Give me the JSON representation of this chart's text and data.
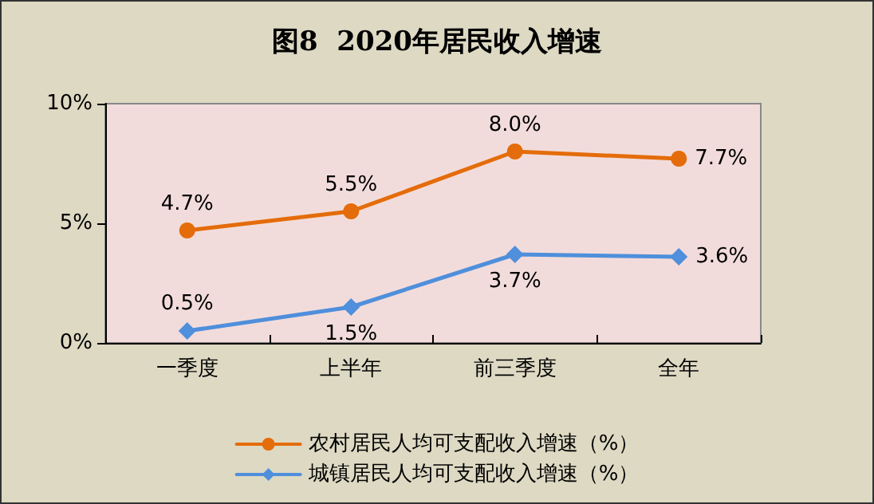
{
  "chart_data": {
    "type": "line",
    "title": "图8  2020年居民收入增速",
    "categories": [
      "一季度",
      "上半年",
      "前三季度",
      "全年"
    ],
    "series": [
      {
        "name": "农村居民人均可支配收入增速（%）",
        "color": "#e46c0a",
        "marker": "circle",
        "values": [
          4.7,
          5.5,
          8.0,
          7.7
        ],
        "value_labels": [
          "4.7%",
          "5.5%",
          "8.0%",
          "7.7%"
        ]
      },
      {
        "name": "城镇居民人均可支配收入增速（%）",
        "color": "#4f8fdc",
        "marker": "diamond",
        "values": [
          0.5,
          1.5,
          3.7,
          3.6
        ],
        "value_labels": [
          "0.5%",
          "1.5%",
          "3.7%",
          "3.6%"
        ]
      }
    ],
    "ylim": [
      0,
      10
    ],
    "yticks": [
      {
        "value": 0,
        "label": "0%"
      },
      {
        "value": 5,
        "label": "5%"
      },
      {
        "value": 10,
        "label": "10%"
      }
    ],
    "grid": false,
    "legend": "bottom",
    "line_style": "solid"
  }
}
